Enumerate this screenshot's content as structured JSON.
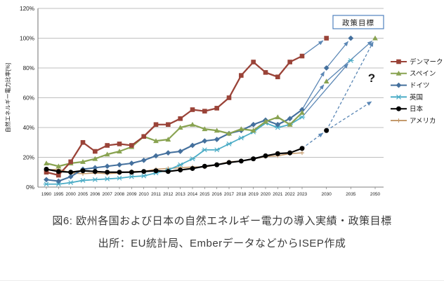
{
  "figure": {
    "caption_line1": "図6: 欧州各国および日本の自然エネルギー電力の導入実績・政策目標",
    "caption_line2": "出所：EU統計局、EmberデータなどからISEP作成"
  },
  "chart_data": {
    "type": "line",
    "title": "",
    "xlabel": "",
    "ylabel": "自然エネルギー電力比率[%]",
    "ylim": [
      0,
      120
    ],
    "ytick_step": 20,
    "ytick_labels": [
      "0%",
      "20%",
      "40%",
      "60%",
      "80%",
      "100%",
      "120%"
    ],
    "grid": true,
    "legend_position": "right",
    "annotations": {
      "policy_target_box": "政策目標",
      "question_mark": "?"
    },
    "categories": [
      "1990",
      "1995",
      "2000",
      "2005",
      "2006",
      "2007",
      "2008",
      "2009",
      "2010",
      "2011",
      "2012",
      "2013",
      "2014",
      "2015",
      "2016",
      "2017",
      "2018",
      "2019",
      "2020",
      "2021",
      "2022",
      "2023",
      "2030",
      "2035",
      "2050"
    ],
    "actual_last_category": "2023",
    "series": [
      {
        "key": "usa",
        "name": "アメリカ",
        "color": "#c49a6c",
        "marker": "plus",
        "line_width": 1.6,
        "values": [
          11.5,
          12,
          9.5,
          9,
          9.5,
          9,
          9.5,
          10.5,
          10.5,
          12,
          12.5,
          13,
          13.5,
          13.5,
          15,
          17,
          17.5,
          19,
          20.5,
          21,
          22.5,
          23,
          null,
          null,
          null
        ]
      },
      {
        "key": "uk",
        "name": "英国",
        "color": "#4bacc6",
        "marker": "xstar",
        "line_width": 1.8,
        "values": [
          2,
          2,
          3,
          4.5,
          5,
          5.5,
          6,
          7,
          7.5,
          9.5,
          11.5,
          15,
          19,
          25,
          25,
          29,
          33,
          37,
          43,
          40,
          42,
          47,
          null,
          85,
          null
        ]
      },
      {
        "key": "germany",
        "name": "ドイツ",
        "color": "#44709d",
        "marker": "diamond",
        "line_width": 2.1,
        "values": [
          5,
          4,
          7,
          12,
          13,
          14,
          15,
          16,
          18,
          21,
          23,
          24,
          28,
          31,
          32,
          36,
          38,
          42,
          45,
          42,
          46,
          52,
          80,
          100,
          null
        ]
      },
      {
        "key": "spain",
        "name": "スペイン",
        "color": "#89a351",
        "marker": "triangle",
        "line_width": 2.2,
        "values": [
          16,
          14,
          16,
          17,
          19,
          22,
          24,
          27,
          34,
          31,
          32,
          40,
          42,
          39,
          38,
          36,
          39,
          38,
          44,
          47,
          42,
          50,
          71,
          null,
          100
        ]
      },
      {
        "key": "denmark",
        "name": "デンマーク",
        "color": "#9a4338",
        "marker": "square",
        "line_width": 2.3,
        "values": [
          10,
          8,
          17,
          30,
          24,
          28,
          29,
          28,
          34,
          42,
          42,
          46,
          52,
          51,
          53,
          60,
          75,
          84,
          77,
          74,
          84,
          88,
          100,
          null,
          null
        ]
      },
      {
        "key": "japan",
        "name": "日本",
        "color": "#000000",
        "marker": "circle",
        "line_width": 2.2,
        "values": [
          12,
          10.5,
          10,
          11,
          10.5,
          10,
          10,
          10,
          10.5,
          11,
          10.5,
          11.5,
          12.5,
          14,
          15,
          16.5,
          17.5,
          19,
          21,
          22.5,
          23,
          26,
          38,
          null,
          null
        ]
      }
    ],
    "legend_order": [
      "denmark",
      "spain",
      "germany",
      "uk",
      "japan",
      "usa"
    ],
    "target_arrows": [
      {
        "series_key": "denmark",
        "from": [
          "2023",
          88
        ],
        "to": [
          "2030",
          100
        ],
        "dashed": false
      },
      {
        "series_key": "germany",
        "from": [
          "2023",
          52
        ],
        "to": [
          "2030",
          80
        ],
        "dashed": false
      },
      {
        "series_key": "germany",
        "from": [
          "2030",
          80
        ],
        "to": [
          "2035",
          100
        ],
        "dashed": false
      },
      {
        "series_key": "spain",
        "from": [
          "2023",
          50
        ],
        "to": [
          "2030",
          71
        ],
        "dashed": false
      },
      {
        "series_key": "spain",
        "from": [
          "2030",
          71
        ],
        "to": [
          "2050",
          100
        ],
        "dashed": false
      },
      {
        "series_key": "uk",
        "from": [
          "2023",
          47
        ],
        "to": [
          "2035",
          85
        ],
        "dashed": false
      },
      {
        "series_key": "japan",
        "from": [
          "2023",
          26
        ],
        "to": [
          "2030",
          38
        ],
        "dashed": true
      },
      {
        "series_key": "japan",
        "from": [
          "2030",
          38
        ],
        "to": [
          "2050",
          100
        ],
        "dashed": true
      },
      {
        "series_key": "japan",
        "from": [
          "2030",
          38
        ],
        "to": [
          "2050",
          59
        ],
        "dashed": true
      }
    ],
    "colors": {
      "arrow": "#5b87b5",
      "grid": "#bfbfbf",
      "axis": "#7f7f7f",
      "tick_text": "#1a1a1a",
      "policy_box_border": "#4f81bd"
    }
  }
}
